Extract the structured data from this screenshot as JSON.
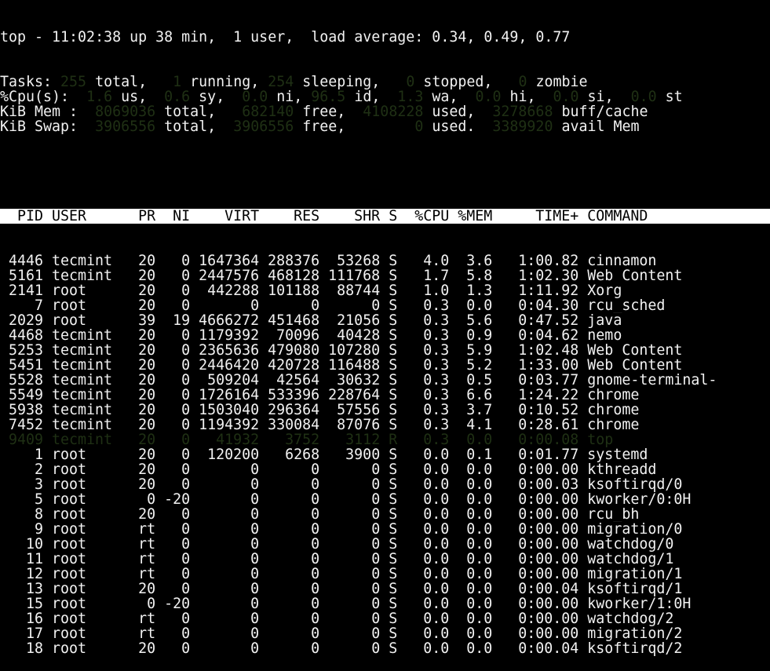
{
  "colors": {
    "background": "#000000",
    "text": "#f2f2f2",
    "dim_value": "#1f3014",
    "header_bar": "#ffffff"
  },
  "summary": {
    "uptime_line": "top - 11:02:38 up 38 min,  1 user,  load average: 0.34, 0.49, 0.77",
    "lines": [
      [
        {
          "t": "Tasks: "
        },
        {
          "v": "255"
        },
        {
          "t": " total,   "
        },
        {
          "v": "1"
        },
        {
          "t": " running, "
        },
        {
          "v": "254"
        },
        {
          "t": " sleeping,   "
        },
        {
          "v": "0"
        },
        {
          "t": " stopped,   "
        },
        {
          "v": "0"
        },
        {
          "t": " zombie"
        }
      ],
      [
        {
          "t": "%Cpu(s):  "
        },
        {
          "v": "1.6"
        },
        {
          "t": " us,  "
        },
        {
          "v": "0.6"
        },
        {
          "t": " sy,  "
        },
        {
          "v": "0.0"
        },
        {
          "t": " ni, "
        },
        {
          "v": "96.5"
        },
        {
          "t": " id,  "
        },
        {
          "v": "1.3"
        },
        {
          "t": " wa,  "
        },
        {
          "v": "0.0"
        },
        {
          "t": " hi,  "
        },
        {
          "v": "0.0"
        },
        {
          "t": " si,  "
        },
        {
          "v": "0.0"
        },
        {
          "t": " st"
        }
      ],
      [
        {
          "t": "KiB Mem :  "
        },
        {
          "v": "8069036"
        },
        {
          "t": " total,   "
        },
        {
          "v": "682140"
        },
        {
          "t": " free,  "
        },
        {
          "v": "4108228"
        },
        {
          "t": " used,  "
        },
        {
          "v": "3278668"
        },
        {
          "t": " buff/cache"
        }
      ],
      [
        {
          "t": "KiB Swap:  "
        },
        {
          "v": "3906556"
        },
        {
          "t": " total,  "
        },
        {
          "v": "3906556"
        },
        {
          "t": " free,        "
        },
        {
          "v": "0"
        },
        {
          "t": " used.  "
        },
        {
          "v": "3389920"
        },
        {
          "t": " avail Mem"
        }
      ]
    ]
  },
  "columns": [
    "PID",
    "USER",
    "PR",
    "NI",
    "VIRT",
    "RES",
    "SHR",
    "S",
    "%CPU",
    "%MEM",
    "TIME+",
    "COMMAND"
  ],
  "processes": [
    [
      "4446",
      "tecmint",
      "20",
      "0",
      "1647364",
      "288376",
      "53268",
      "S",
      "4.0",
      "3.6",
      "1:00.82",
      "cinnamon"
    ],
    [
      "5161",
      "tecmint",
      "20",
      "0",
      "2447576",
      "468128",
      "111768",
      "S",
      "1.7",
      "5.8",
      "1:02.30",
      "Web Content"
    ],
    [
      "2141",
      "root",
      "20",
      "0",
      "442288",
      "101188",
      "88744",
      "S",
      "1.0",
      "1.3",
      "1:11.92",
      "Xorg"
    ],
    [
      "7",
      "root",
      "20",
      "0",
      "0",
      "0",
      "0",
      "S",
      "0.3",
      "0.0",
      "0:04.30",
      "rcu_sched"
    ],
    [
      "2029",
      "root",
      "39",
      "19",
      "4666272",
      "451468",
      "21056",
      "S",
      "0.3",
      "5.6",
      "0:47.52",
      "java"
    ],
    [
      "4468",
      "tecmint",
      "20",
      "0",
      "1179392",
      "70096",
      "40428",
      "S",
      "0.3",
      "0.9",
      "0:04.62",
      "nemo"
    ],
    [
      "5253",
      "tecmint",
      "20",
      "0",
      "2365636",
      "479080",
      "107280",
      "S",
      "0.3",
      "5.9",
      "1:02.48",
      "Web Content"
    ],
    [
      "5451",
      "tecmint",
      "20",
      "0",
      "2446420",
      "420728",
      "116488",
      "S",
      "0.3",
      "5.2",
      "1:33.00",
      "Web Content"
    ],
    [
      "5528",
      "tecmint",
      "20",
      "0",
      "509204",
      "42564",
      "30632",
      "S",
      "0.3",
      "0.5",
      "0:03.77",
      "gnome-terminal-"
    ],
    [
      "5549",
      "tecmint",
      "20",
      "0",
      "1726164",
      "533396",
      "228764",
      "S",
      "0.3",
      "6.6",
      "1:24.22",
      "chrome"
    ],
    [
      "5938",
      "tecmint",
      "20",
      "0",
      "1503040",
      "296364",
      "57556",
      "S",
      "0.3",
      "3.7",
      "0:10.52",
      "chrome"
    ],
    [
      "7452",
      "tecmint",
      "20",
      "0",
      "1194392",
      "330084",
      "87076",
      "S",
      "0.3",
      "4.1",
      "0:28.61",
      "chrome"
    ],
    [
      "9409",
      "tecmint",
      "20",
      "0",
      "41932",
      "3752",
      "3112",
      "R",
      "0.3",
      "0.0",
      "0:00.08",
      "top"
    ],
    [
      "1",
      "root",
      "20",
      "0",
      "120200",
      "6268",
      "3900",
      "S",
      "0.0",
      "0.1",
      "0:01.77",
      "systemd"
    ],
    [
      "2",
      "root",
      "20",
      "0",
      "0",
      "0",
      "0",
      "S",
      "0.0",
      "0.0",
      "0:00.00",
      "kthreadd"
    ],
    [
      "3",
      "root",
      "20",
      "0",
      "0",
      "0",
      "0",
      "S",
      "0.0",
      "0.0",
      "0:00.03",
      "ksoftirqd/0"
    ],
    [
      "5",
      "root",
      "0",
      "-20",
      "0",
      "0",
      "0",
      "S",
      "0.0",
      "0.0",
      "0:00.00",
      "kworker/0:0H"
    ],
    [
      "8",
      "root",
      "20",
      "0",
      "0",
      "0",
      "0",
      "S",
      "0.0",
      "0.0",
      "0:00.00",
      "rcu_bh"
    ],
    [
      "9",
      "root",
      "rt",
      "0",
      "0",
      "0",
      "0",
      "S",
      "0.0",
      "0.0",
      "0:00.00",
      "migration/0"
    ],
    [
      "10",
      "root",
      "rt",
      "0",
      "0",
      "0",
      "0",
      "S",
      "0.0",
      "0.0",
      "0:00.00",
      "watchdog/0"
    ],
    [
      "11",
      "root",
      "rt",
      "0",
      "0",
      "0",
      "0",
      "S",
      "0.0",
      "0.0",
      "0:00.00",
      "watchdog/1"
    ],
    [
      "12",
      "root",
      "rt",
      "0",
      "0",
      "0",
      "0",
      "S",
      "0.0",
      "0.0",
      "0:00.00",
      "migration/1"
    ],
    [
      "13",
      "root",
      "20",
      "0",
      "0",
      "0",
      "0",
      "S",
      "0.0",
      "0.0",
      "0:00.04",
      "ksoftirqd/1"
    ],
    [
      "15",
      "root",
      "0",
      "-20",
      "0",
      "0",
      "0",
      "S",
      "0.0",
      "0.0",
      "0:00.00",
      "kworker/1:0H"
    ],
    [
      "16",
      "root",
      "rt",
      "0",
      "0",
      "0",
      "0",
      "S",
      "0.0",
      "0.0",
      "0:00.00",
      "watchdog/2"
    ],
    [
      "17",
      "root",
      "rt",
      "0",
      "0",
      "0",
      "0",
      "S",
      "0.0",
      "0.0",
      "0:00.00",
      "migration/2"
    ],
    [
      "18",
      "root",
      "20",
      "0",
      "0",
      "0",
      "0",
      "S",
      "0.0",
      "0.0",
      "0:00.04",
      "ksoftirqd/2"
    ]
  ],
  "dim_process_pid": "9409"
}
